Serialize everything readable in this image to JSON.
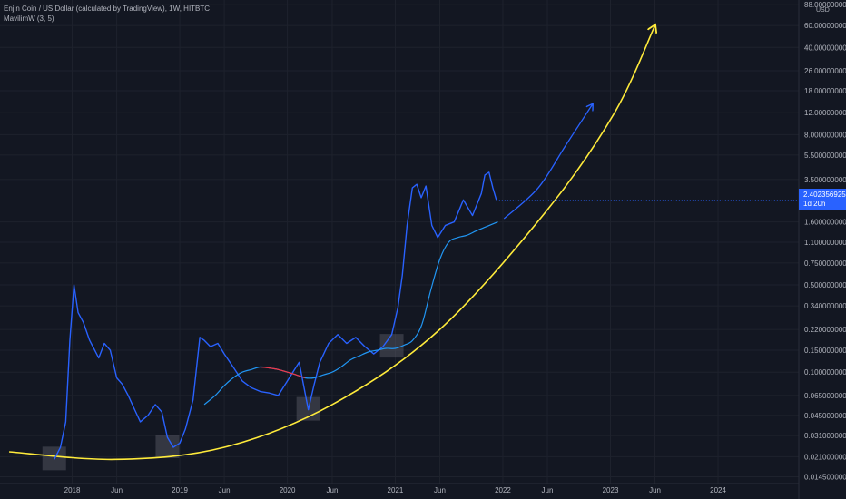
{
  "legend": {
    "title": "Enjin Coin / US Dollar (calculated by TradingView), 1W, HITBTC",
    "indicator": "MavilimW (3, 5)"
  },
  "price_axis_unit": "USD",
  "last_price": {
    "value": "2.4023569252",
    "countdown": "1d 20h"
  },
  "colors": {
    "background": "#131722",
    "price_line": "#2962ff",
    "mavilim_up": "#2196f3",
    "mavilim_down": "#f23645",
    "projection_curve": "#ffeb3b",
    "projection_arrow": "#2962ff",
    "highlight_box": "#5d606b"
  },
  "chart_data": {
    "type": "line",
    "title": "Enjin Coin / US Dollar (calculated by TradingView), 1W, HITBTC",
    "y_scale": "log",
    "ylim": [
      0.0128,
      96
    ],
    "xlim": [
      "2017-05",
      "2024-10"
    ],
    "yticks": [
      "88.0000000000",
      "60.0000000000",
      "40.0000000000",
      "26.0000000000",
      "18.0000000000",
      "12.0000000000",
      "8.0000000000",
      "5.5000000000",
      "3.5000000000",
      "2.4023569252",
      "1.6000000000",
      "1.1000000000",
      "0.7500000000",
      "0.5000000000",
      "0.3400000000",
      "0.2200000000",
      "0.1500000000",
      "0.1000000000",
      "0.0650000000",
      "0.0450000000",
      "0.0310000000",
      "0.0210000000",
      "0.0145000000"
    ],
    "xticks": [
      "2018",
      "Jun",
      "2019",
      "Jun",
      "2020",
      "Jun",
      "2021",
      "Jun",
      "2022",
      "Jun",
      "2023",
      "Jun",
      "2024"
    ],
    "series": [
      {
        "name": "Enjin Coin / US Dollar",
        "points": [
          [
            "2017-11-01",
            0.02
          ],
          [
            "2017-11-22",
            0.025
          ],
          [
            "2017-12-10",
            0.04
          ],
          [
            "2017-12-24",
            0.18
          ],
          [
            "2018-01-07",
            0.5
          ],
          [
            "2018-01-21",
            0.3
          ],
          [
            "2018-02-08",
            0.25
          ],
          [
            "2018-03-01",
            0.18
          ],
          [
            "2018-04-01",
            0.13
          ],
          [
            "2018-04-20",
            0.17
          ],
          [
            "2018-05-10",
            0.15
          ],
          [
            "2018-06-01",
            0.09
          ],
          [
            "2018-06-20",
            0.08
          ],
          [
            "2018-07-10",
            0.065
          ],
          [
            "2018-08-01",
            0.05
          ],
          [
            "2018-08-20",
            0.04
          ],
          [
            "2018-09-15",
            0.045
          ],
          [
            "2018-10-10",
            0.055
          ],
          [
            "2018-11-01",
            0.048
          ],
          [
            "2018-11-20",
            0.03
          ],
          [
            "2018-12-10",
            0.025
          ],
          [
            "2019-01-01",
            0.027
          ],
          [
            "2019-01-20",
            0.035
          ],
          [
            "2019-02-15",
            0.06
          ],
          [
            "2019-03-10",
            0.19
          ],
          [
            "2019-03-25",
            0.18
          ],
          [
            "2019-04-15",
            0.16
          ],
          [
            "2019-05-10",
            0.17
          ],
          [
            "2019-06-01",
            0.14
          ],
          [
            "2019-07-01",
            0.11
          ],
          [
            "2019-08-01",
            0.085
          ],
          [
            "2019-09-01",
            0.075
          ],
          [
            "2019-10-01",
            0.07
          ],
          [
            "2019-11-01",
            0.068
          ],
          [
            "2019-12-01",
            0.065
          ],
          [
            "2020-01-01",
            0.085
          ],
          [
            "2020-02-10",
            0.12
          ],
          [
            "2020-03-12",
            0.05
          ],
          [
            "2020-04-01",
            0.08
          ],
          [
            "2020-04-20",
            0.12
          ],
          [
            "2020-05-20",
            0.17
          ],
          [
            "2020-06-20",
            0.2
          ],
          [
            "2020-07-20",
            0.17
          ],
          [
            "2020-08-20",
            0.19
          ],
          [
            "2020-09-20",
            0.16
          ],
          [
            "2020-10-20",
            0.14
          ],
          [
            "2020-11-20",
            0.16
          ],
          [
            "2020-12-20",
            0.2
          ],
          [
            "2021-01-10",
            0.33
          ],
          [
            "2021-01-25",
            0.6
          ],
          [
            "2021-02-10",
            1.5
          ],
          [
            "2021-02-28",
            3.0
          ],
          [
            "2021-03-15",
            3.2
          ],
          [
            "2021-03-30",
            2.5
          ],
          [
            "2021-04-15",
            3.1
          ],
          [
            "2021-05-05",
            1.5
          ],
          [
            "2021-05-25",
            1.2
          ],
          [
            "2021-06-20",
            1.5
          ],
          [
            "2021-07-20",
            1.6
          ],
          [
            "2021-08-20",
            2.4
          ],
          [
            "2021-09-20",
            1.8
          ],
          [
            "2021-10-20",
            2.7
          ],
          [
            "2021-11-01",
            3.8
          ],
          [
            "2021-11-15",
            4.0
          ],
          [
            "2021-11-28",
            3.0
          ],
          [
            "2021-12-10",
            2.4
          ]
        ]
      },
      {
        "name": "MavilimW (3, 5)",
        "points": [
          [
            "2019-03-25",
            0.055
          ],
          [
            "2019-05-01",
            0.065
          ],
          [
            "2019-06-01",
            0.078
          ],
          [
            "2019-07-01",
            0.09
          ],
          [
            "2019-08-01",
            0.1
          ],
          [
            "2019-09-01",
            0.105
          ],
          [
            "2019-10-01",
            0.11
          ],
          [
            "2019-11-01",
            0.108
          ],
          [
            "2019-12-01",
            0.105
          ],
          [
            "2020-01-01",
            0.1
          ],
          [
            "2020-02-01",
            0.095
          ],
          [
            "2020-03-01",
            0.09
          ],
          [
            "2020-04-01",
            0.09
          ],
          [
            "2020-05-01",
            0.095
          ],
          [
            "2020-06-01",
            0.1
          ],
          [
            "2020-07-01",
            0.11
          ],
          [
            "2020-08-01",
            0.125
          ],
          [
            "2020-09-01",
            0.135
          ],
          [
            "2020-10-01",
            0.145
          ],
          [
            "2020-11-01",
            0.15
          ],
          [
            "2020-12-01",
            0.155
          ],
          [
            "2021-01-01",
            0.155
          ],
          [
            "2021-02-01",
            0.165
          ],
          [
            "2021-03-01",
            0.18
          ],
          [
            "2021-04-01",
            0.24
          ],
          [
            "2021-05-01",
            0.45
          ],
          [
            "2021-06-01",
            0.8
          ],
          [
            "2021-07-01",
            1.1
          ],
          [
            "2021-08-01",
            1.2
          ],
          [
            "2021-09-01",
            1.25
          ],
          [
            "2021-10-01",
            1.35
          ],
          [
            "2021-11-01",
            1.45
          ],
          [
            "2021-12-01",
            1.55
          ],
          [
            "2021-12-15",
            1.6
          ]
        ],
        "down_segment": [
          "2019-10-01",
          "2020-03-01"
        ]
      }
    ],
    "projection_curve": [
      [
        "2017-06-01",
        0.023
      ],
      [
        "2018-06-01",
        0.02
      ],
      [
        "2019-06-01",
        0.025
      ],
      [
        "2020-06-01",
        0.055
      ],
      [
        "2021-06-01",
        0.22
      ],
      [
        "2022-06-01",
        2.0
      ],
      [
        "2023-01-15",
        12.0
      ],
      [
        "2023-06-01",
        60.0
      ]
    ],
    "projection_arrow": [
      [
        "2022-01-05",
        1.7
      ],
      [
        "2022-05-01",
        3.0
      ],
      [
        "2022-08-01",
        6.5
      ],
      [
        "2022-11-01",
        14.0
      ]
    ],
    "highlight_boxes": [
      [
        "2017-11-01",
        0.02
      ],
      [
        "2018-11-20",
        0.025
      ],
      [
        "2020-03-12",
        0.05
      ],
      [
        "2020-12-20",
        0.16
      ]
    ]
  }
}
